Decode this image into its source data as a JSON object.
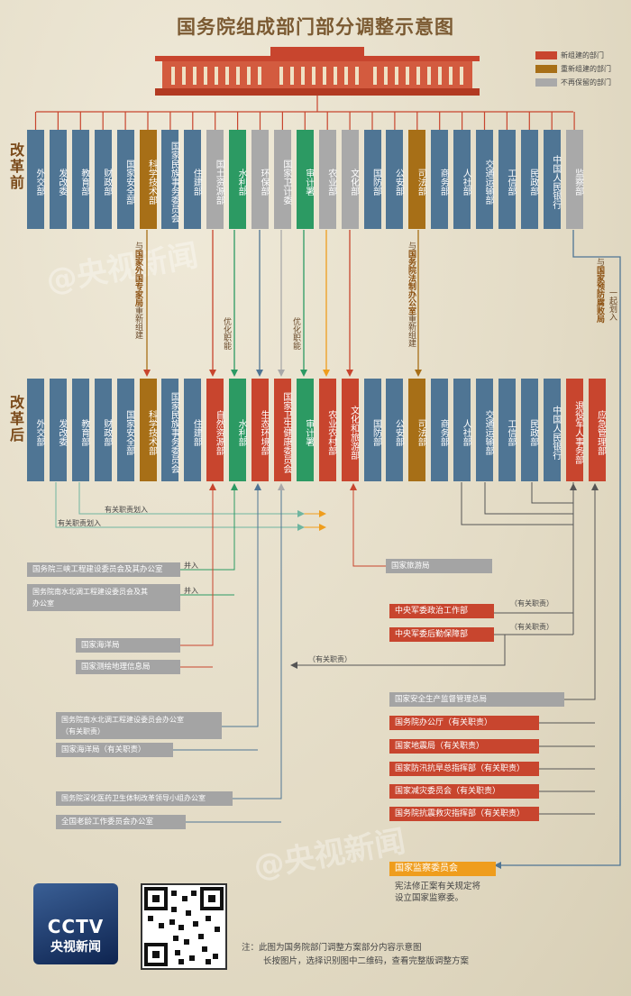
{
  "title": "国务院组成部门部分调整示意图",
  "legend": [
    {
      "label": "新组建的部门",
      "color": "#c8452e"
    },
    {
      "label": "重新组建的部门",
      "color": "#a76f17"
    },
    {
      "label": "不再保留的部门",
      "color": "#a9a9a9"
    }
  ],
  "era_before": "改革前",
  "era_after": "改革后",
  "before": [
    {
      "name": "外交部",
      "type": "std"
    },
    {
      "name": "发改委",
      "type": "std"
    },
    {
      "name": "教育部",
      "type": "std"
    },
    {
      "name": "财政部",
      "type": "std"
    },
    {
      "name": "国家安全部",
      "type": "std"
    },
    {
      "name": "科学技术部",
      "type": "re"
    },
    {
      "name": "国家民族事务委员会",
      "type": "std"
    },
    {
      "name": "住建部",
      "type": "std"
    },
    {
      "name": "国土资源部",
      "type": "gone"
    },
    {
      "name": "水利部",
      "type": "green"
    },
    {
      "name": "环保部",
      "type": "gone"
    },
    {
      "name": "国家卫计委",
      "type": "gone"
    },
    {
      "name": "审计署",
      "type": "green"
    },
    {
      "name": "农业部",
      "type": "gone"
    },
    {
      "name": "文化部",
      "type": "gone"
    },
    {
      "name": "国防部",
      "type": "std"
    },
    {
      "name": "公安部",
      "type": "std"
    },
    {
      "name": "司法部",
      "type": "re"
    },
    {
      "name": "商务部",
      "type": "std"
    },
    {
      "name": "人社部",
      "type": "std"
    },
    {
      "name": "交通运输部",
      "type": "std"
    },
    {
      "name": "工信部",
      "type": "std"
    },
    {
      "name": "民政部",
      "type": "std"
    },
    {
      "name": "中国人民银行",
      "type": "std"
    },
    {
      "name": "监察部",
      "type": "gone"
    }
  ],
  "after": [
    {
      "name": "外交部",
      "type": "std"
    },
    {
      "name": "发改委",
      "type": "std"
    },
    {
      "name": "教育部",
      "type": "std"
    },
    {
      "name": "财政部",
      "type": "std"
    },
    {
      "name": "国家安全部",
      "type": "std"
    },
    {
      "name": "科学技术部",
      "type": "re"
    },
    {
      "name": "国家民族事务委员会",
      "type": "std"
    },
    {
      "name": "住建部",
      "type": "std"
    },
    {
      "name": "自然资源部",
      "type": "new"
    },
    {
      "name": "水利部",
      "type": "green"
    },
    {
      "name": "生态环境部",
      "type": "new"
    },
    {
      "name": "国家卫生健康委员会",
      "type": "new"
    },
    {
      "name": "审计署",
      "type": "green"
    },
    {
      "name": "农业农村部",
      "type": "new"
    },
    {
      "name": "文化和旅游部",
      "type": "new"
    },
    {
      "name": "国防部",
      "type": "std"
    },
    {
      "name": "公安部",
      "type": "std"
    },
    {
      "name": "司法部",
      "type": "re"
    },
    {
      "name": "商务部",
      "type": "std"
    },
    {
      "name": "人社部",
      "type": "std"
    },
    {
      "name": "交通运输部",
      "type": "std"
    },
    {
      "name": "工信部",
      "type": "std"
    },
    {
      "name": "民政部",
      "type": "std"
    },
    {
      "name": "中国人民银行",
      "type": "std"
    },
    {
      "name": "退役军人事务部",
      "type": "new"
    },
    {
      "name": "应急管理部",
      "type": "new"
    }
  ],
  "annotations": {
    "keji_prefix": "与",
    "keji_bold": "国家外国专家局",
    "keji_suffix": "重新组建",
    "shuili": "优化职能",
    "shenji": "优化职能",
    "sifa_prefix": "与",
    "sifa_bold": "国务院法制办公室",
    "sifa_suffix": "重新组建",
    "jiancha_prefix": "与",
    "jiancha_bold": "国家预防腐败局",
    "jiancha_suffix": "一起划入"
  },
  "transfer_labels": {
    "t1": "有关职责划入",
    "t2": "有关职责划入",
    "merge1": "并入",
    "merge2": "并入",
    "duty1": "（有关职责）",
    "duty2": "（有关职责）",
    "duty3": "（有关职责）"
  },
  "left_boxes": [
    {
      "text": "国务院三峡工程建设委员会及其办公室"
    },
    {
      "text": "国务院南水北调工程建设委员会及其\n办公室"
    },
    {
      "text": "国家海洋局"
    },
    {
      "text": "国家测绘地理信息局"
    },
    {
      "text": "国务院南水北调工程建设委员会办公室\n（有关职责）"
    },
    {
      "text": "国家海洋局（有关职责）"
    },
    {
      "text": "国务院深化医药卫生体制改革领导小组办公室"
    },
    {
      "text": "全国老龄工作委员会办公室"
    }
  ],
  "right_boxes": {
    "lvyou": "国家旅游局",
    "zhengzhi": "中央军委政治工作部",
    "houqin": "中央军委后勤保障部",
    "anquan": "国家安全生产监督管理总局",
    "bangong": "国务院办公厅（有关职责）",
    "dizhen": "国家地震局（有关职责）",
    "fangxun": "国家防汛抗旱总指挥部（有关职责）",
    "jianzai": "国家减灾委员会（有关职责）",
    "kangzhen": "国务院抗震救灾指挥部（有关职责）",
    "jiancha_wei": "国家监察委员会",
    "jiancha_note": "宪法修正案有关规定将\n设立国家监察委。"
  },
  "footer": {
    "note_line1": "注：此图为国务院部门调整方案部分内容示意图",
    "note_line2": "长按图片，选择识别图中二维码，查看完整版调整方案",
    "logo_latin": "CCTV",
    "logo_zh": "央视新闻",
    "watermark": "@央视新闻"
  }
}
